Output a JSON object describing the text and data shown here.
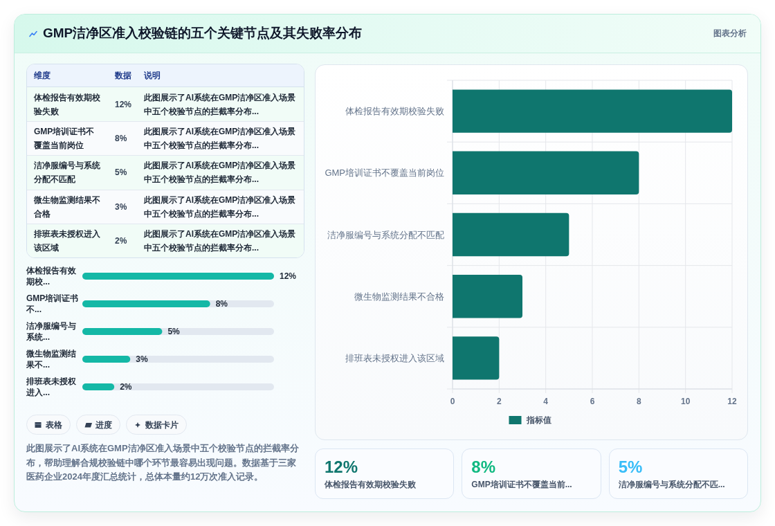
{
  "chart_data": [
    {
      "type": "other",
      "title": "GMP洁净区准入校验链的五个关键节点及其失败率分布",
      "annotations": [
        "图表分析"
      ]
    },
    {
      "type": "other",
      "categories": [
        "体检报告有效期校验失败",
        "GMP培训证书不覆盖当前岗位",
        "洁净服编号与系统分配不匹配",
        "微生物监测结果不合格",
        "排班表未授权进入该区域"
      ],
      "values": [
        12,
        8,
        5,
        3,
        2
      ],
      "value_labels": [
        "12%",
        "8%",
        "5%",
        "3%",
        "2%"
      ],
      "annotations": [
        "维度",
        "数据",
        "说明",
        "此图展示了AI系统在GMP洁净区准入场景中五个校验节点的拦截率分布...",
        "此图展示了AI系统在GMP洁净区准入场景中五个校验节点的拦截率分布...",
        "此图展示了AI系统在GMP洁净区准入场景中五个校验节点的拦截率分布...",
        "此图展示了AI系统在GMP洁净区准入场景中五个校验节点的拦截率分布...",
        "此图展示了AI系统在GMP洁净区准入场景中五个校验节点的拦截率分布..."
      ]
    },
    {
      "type": "bar",
      "orientation": "horizontal",
      "categories": [
        "体检报告有效期校...",
        "GMP培训证书不...",
        "洁净服编号与系统...",
        "微生物监测结果不...",
        "排班表未授权进入..."
      ],
      "values": [
        12,
        8,
        5,
        3,
        2
      ],
      "value_labels": [
        "12%",
        "8%",
        "5%",
        "3%",
        "2%"
      ],
      "colors": [
        "#14b8a6",
        "#14b8a6",
        "#14b8a6",
        "#14b8a6",
        "#14b8a6"
      ]
    },
    {
      "type": "other",
      "annotations": [
        "表格",
        "进度",
        "数据卡片"
      ]
    },
    {
      "type": "other",
      "annotations": [
        "此图展示了AI系统在GMP洁净区准入场景中五个校验节点的拦截率分布，帮助理解合规校验链中哪个环节最容易出现问题。数据基于三家医药企业2024年度汇总统计，总体本量约12万次准入记录。"
      ]
    },
    {
      "type": "bar",
      "orientation": "horizontal",
      "categories": [
        "体检报告有效期校验失败",
        "GMP培训证书不覆盖当前岗位",
        "洁净服编号与系统分配不匹配",
        "微生物监测结果不合格",
        "排班表未授权进入该区域"
      ],
      "series": [
        {
          "name": "指标值",
          "color": "#0f766e",
          "values": [
            12,
            8,
            5,
            3,
            2
          ]
        }
      ],
      "xlim": [
        0,
        12
      ],
      "xticks": [
        0,
        2,
        4,
        6,
        8,
        10,
        12
      ],
      "grid": true,
      "legend": "bottom"
    },
    {
      "type": "other",
      "categories": [
        "体检报告有效期校验失败",
        "GMP培训证书不覆盖当前...",
        "洁净服编号与系统分配不匹..."
      ],
      "values": [
        12,
        8,
        5
      ],
      "value_labels": [
        "12%",
        "8%",
        "5%"
      ]
    }
  ]
}
